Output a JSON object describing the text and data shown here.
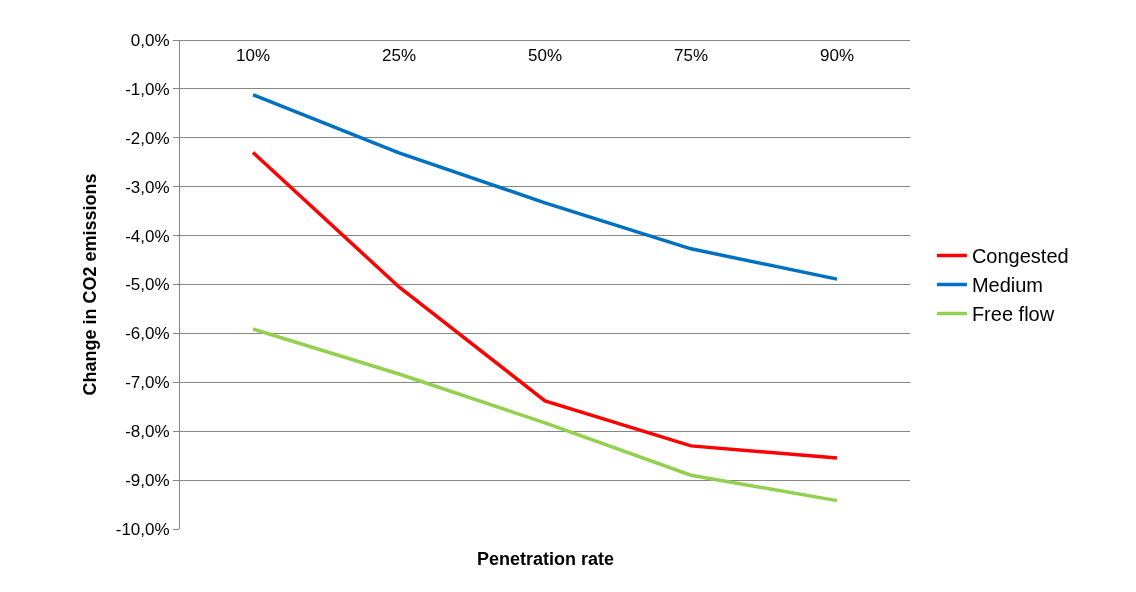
{
  "chart_data": {
    "type": "line",
    "xlabel": "Penetration rate",
    "ylabel": "Change in CO2 emissions",
    "categories": [
      "10%",
      "25%",
      "50%",
      "75%",
      "90%"
    ],
    "series": [
      {
        "name": "Congested",
        "color": "#ff0000",
        "values": [
          -2.3,
          -5.05,
          -7.38,
          -8.3,
          -8.55
        ]
      },
      {
        "name": "Medium",
        "color": "#0070c0",
        "values": [
          -1.12,
          -2.31,
          -3.33,
          -4.27,
          -4.89
        ]
      },
      {
        "name": "Free flow",
        "color": "#92d050",
        "values": [
          -5.91,
          -6.83,
          -7.83,
          -8.9,
          -9.42
        ]
      }
    ],
    "ylim": [
      -10,
      0
    ],
    "yticks": [
      {
        "value": 0,
        "label": "0,0%"
      },
      {
        "value": -1,
        "label": "-1,0%"
      },
      {
        "value": -2,
        "label": "-2,0%"
      },
      {
        "value": -3,
        "label": "-3,0%"
      },
      {
        "value": -4,
        "label": "-4,0%"
      },
      {
        "value": -5,
        "label": "-5,0%"
      },
      {
        "value": -6,
        "label": "-6,0%"
      },
      {
        "value": -7,
        "label": "-7,0%"
      },
      {
        "value": -8,
        "label": "-8,0%"
      },
      {
        "value": -9,
        "label": "-9,0%"
      },
      {
        "value": -10,
        "label": "-10,0%"
      }
    ],
    "grid": "y",
    "legend": "right",
    "marker": "none",
    "line_style": "solid"
  }
}
